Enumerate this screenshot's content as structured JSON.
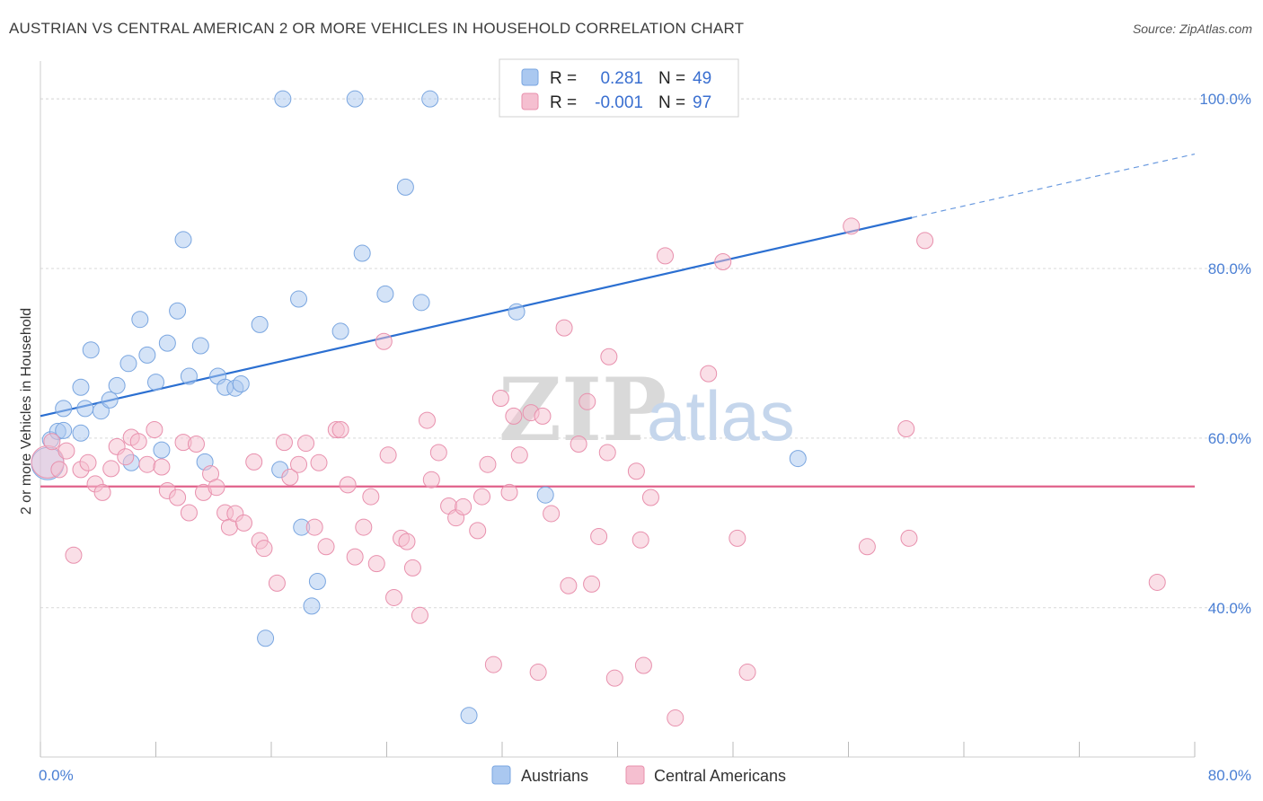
{
  "title": "AUSTRIAN VS CENTRAL AMERICAN 2 OR MORE VEHICLES IN HOUSEHOLD CORRELATION CHART",
  "source": "Source: ZipAtlas.com",
  "watermark": {
    "zip": "ZIP",
    "atlas": "atlas"
  },
  "colors": {
    "blue_fill": "#aac8f0",
    "blue_stroke": "#7aa6e0",
    "blue_line": "#2b6fd1",
    "pink_fill": "#f5bfd0",
    "pink_stroke": "#e890ad",
    "pink_line": "#e0608a",
    "grid": "#d9d9d9",
    "tick_text": "#4a7fd4"
  },
  "legend": {
    "rows": [
      {
        "series": "Austrians",
        "r_label": "R = ",
        "r_value": "0.281",
        "n_label": "N = ",
        "n_value": "49"
      },
      {
        "series": "Central Americans",
        "r_label": "R = ",
        "r_value": "-0.001",
        "n_label": "N = ",
        "n_value": "97"
      }
    ]
  },
  "chart_data": {
    "type": "scatter",
    "title": "AUSTRIAN VS CENTRAL AMERICAN 2 OR MORE VEHICLES IN HOUSEHOLD CORRELATION CHART",
    "xlabel": "",
    "ylabel": "2 or more Vehicles in Household",
    "xlim": [
      0,
      80
    ],
    "ylim": [
      22.4,
      103.3
    ],
    "x_tick_labels": [
      "0.0%",
      "80.0%"
    ],
    "y_ticks": [
      40,
      60,
      80,
      100
    ],
    "y_tick_labels": [
      "40.0%",
      "60.0%",
      "80.0%",
      "100.0%"
    ],
    "grid": true,
    "legend_position": "top-center",
    "bottom_legend": [
      "Austrians",
      "Central Americans"
    ],
    "series": [
      {
        "name": "Austrians",
        "color": "#aac8f0",
        "points": [
          [
            0.5,
            57.0
          ],
          [
            0.7,
            59.8
          ],
          [
            1.2,
            60.8
          ],
          [
            1.6,
            60.9
          ],
          [
            1.6,
            63.5
          ],
          [
            2.8,
            60.6
          ],
          [
            2.8,
            66.0
          ],
          [
            3.1,
            63.5
          ],
          [
            3.5,
            70.4
          ],
          [
            4.2,
            63.2
          ],
          [
            4.8,
            64.5
          ],
          [
            5.3,
            66.2
          ],
          [
            6.1,
            68.8
          ],
          [
            6.3,
            57.1
          ],
          [
            6.9,
            74.0
          ],
          [
            7.4,
            69.8
          ],
          [
            8.0,
            66.6
          ],
          [
            8.4,
            58.6
          ],
          [
            8.8,
            71.2
          ],
          [
            9.5,
            75.0
          ],
          [
            9.9,
            83.4
          ],
          [
            10.3,
            67.3
          ],
          [
            11.1,
            70.9
          ],
          [
            11.4,
            57.2
          ],
          [
            12.3,
            67.3
          ],
          [
            12.8,
            66.0
          ],
          [
            13.5,
            65.9
          ],
          [
            13.9,
            66.4
          ],
          [
            15.2,
            73.4
          ],
          [
            15.6,
            36.4
          ],
          [
            16.6,
            56.3
          ],
          [
            16.8,
            100.0
          ],
          [
            17.9,
            76.4
          ],
          [
            18.1,
            49.5
          ],
          [
            18.8,
            40.2
          ],
          [
            19.2,
            43.1
          ],
          [
            20.8,
            72.6
          ],
          [
            21.8,
            100.0
          ],
          [
            22.3,
            81.8
          ],
          [
            23.9,
            77.0
          ],
          [
            25.3,
            89.6
          ],
          [
            26.4,
            76.0
          ],
          [
            27.0,
            100.0
          ],
          [
            29.7,
            27.3
          ],
          [
            33.0,
            100.0
          ],
          [
            33.0,
            74.9
          ],
          [
            35.7,
            100.0
          ],
          [
            35.0,
            53.3
          ],
          [
            52.5,
            57.6
          ]
        ]
      },
      {
        "name": "Central Americans",
        "color": "#f5bfd0",
        "points": [
          [
            0.5,
            57.2
          ],
          [
            0.8,
            59.6
          ],
          [
            1.3,
            56.3
          ],
          [
            1.8,
            58.5
          ],
          [
            2.3,
            46.2
          ],
          [
            2.8,
            56.3
          ],
          [
            3.3,
            57.1
          ],
          [
            3.8,
            54.6
          ],
          [
            4.3,
            53.6
          ],
          [
            4.9,
            56.4
          ],
          [
            5.3,
            59.0
          ],
          [
            5.9,
            57.8
          ],
          [
            6.3,
            60.1
          ],
          [
            6.8,
            59.6
          ],
          [
            7.4,
            56.9
          ],
          [
            7.9,
            61.0
          ],
          [
            8.4,
            56.6
          ],
          [
            8.8,
            53.8
          ],
          [
            9.5,
            53.0
          ],
          [
            9.9,
            59.5
          ],
          [
            10.3,
            51.2
          ],
          [
            10.8,
            59.3
          ],
          [
            11.3,
            53.6
          ],
          [
            11.8,
            55.8
          ],
          [
            12.2,
            54.2
          ],
          [
            12.8,
            51.2
          ],
          [
            13.1,
            49.5
          ],
          [
            13.5,
            51.1
          ],
          [
            14.1,
            50.0
          ],
          [
            14.8,
            57.2
          ],
          [
            15.2,
            47.9
          ],
          [
            15.5,
            47.0
          ],
          [
            16.4,
            42.9
          ],
          [
            16.9,
            59.5
          ],
          [
            17.3,
            55.4
          ],
          [
            17.9,
            56.9
          ],
          [
            18.4,
            59.4
          ],
          [
            19.0,
            49.5
          ],
          [
            19.3,
            57.1
          ],
          [
            19.8,
            47.2
          ],
          [
            20.5,
            61.0
          ],
          [
            20.8,
            61.0
          ],
          [
            21.3,
            54.5
          ],
          [
            21.8,
            46.0
          ],
          [
            22.4,
            49.5
          ],
          [
            22.9,
            53.1
          ],
          [
            23.3,
            45.2
          ],
          [
            23.8,
            71.4
          ],
          [
            24.1,
            58.0
          ],
          [
            24.5,
            41.2
          ],
          [
            25.0,
            48.2
          ],
          [
            25.4,
            47.8
          ],
          [
            25.8,
            44.7
          ],
          [
            26.3,
            39.1
          ],
          [
            26.8,
            62.1
          ],
          [
            27.1,
            55.1
          ],
          [
            27.6,
            58.3
          ],
          [
            28.3,
            52.0
          ],
          [
            28.8,
            50.6
          ],
          [
            29.3,
            51.9
          ],
          [
            30.3,
            49.1
          ],
          [
            30.6,
            53.1
          ],
          [
            31.0,
            56.9
          ],
          [
            31.4,
            33.3
          ],
          [
            31.9,
            64.7
          ],
          [
            32.5,
            53.6
          ],
          [
            32.8,
            62.6
          ],
          [
            33.2,
            58.0
          ],
          [
            34.0,
            63.0
          ],
          [
            34.5,
            32.4
          ],
          [
            34.8,
            62.6
          ],
          [
            35.4,
            51.1
          ],
          [
            36.3,
            73.0
          ],
          [
            36.6,
            42.6
          ],
          [
            37.3,
            59.3
          ],
          [
            37.9,
            64.3
          ],
          [
            38.2,
            42.8
          ],
          [
            38.7,
            48.4
          ],
          [
            39.3,
            58.3
          ],
          [
            39.4,
            69.6
          ],
          [
            39.8,
            31.7
          ],
          [
            41.3,
            56.1
          ],
          [
            41.6,
            48.0
          ],
          [
            41.8,
            33.2
          ],
          [
            42.3,
            53.0
          ],
          [
            43.3,
            81.5
          ],
          [
            44.0,
            27.0
          ],
          [
            46.3,
            67.6
          ],
          [
            47.3,
            80.8
          ],
          [
            48.3,
            48.2
          ],
          [
            49.0,
            32.4
          ],
          [
            56.2,
            85.0
          ],
          [
            57.3,
            47.2
          ],
          [
            60.0,
            61.1
          ],
          [
            60.2,
            48.2
          ],
          [
            61.3,
            83.3
          ],
          [
            77.4,
            43.0
          ]
        ]
      }
    ],
    "trend_lines": [
      {
        "series": "Austrians",
        "x": [
          0,
          60.4
        ],
        "y": [
          62.6,
          86.0
        ],
        "dashed_extension_to": [
          80,
          93.5
        ]
      },
      {
        "series": "Central Americans",
        "x": [
          0,
          80
        ],
        "y": [
          54.3,
          54.3
        ]
      }
    ]
  }
}
